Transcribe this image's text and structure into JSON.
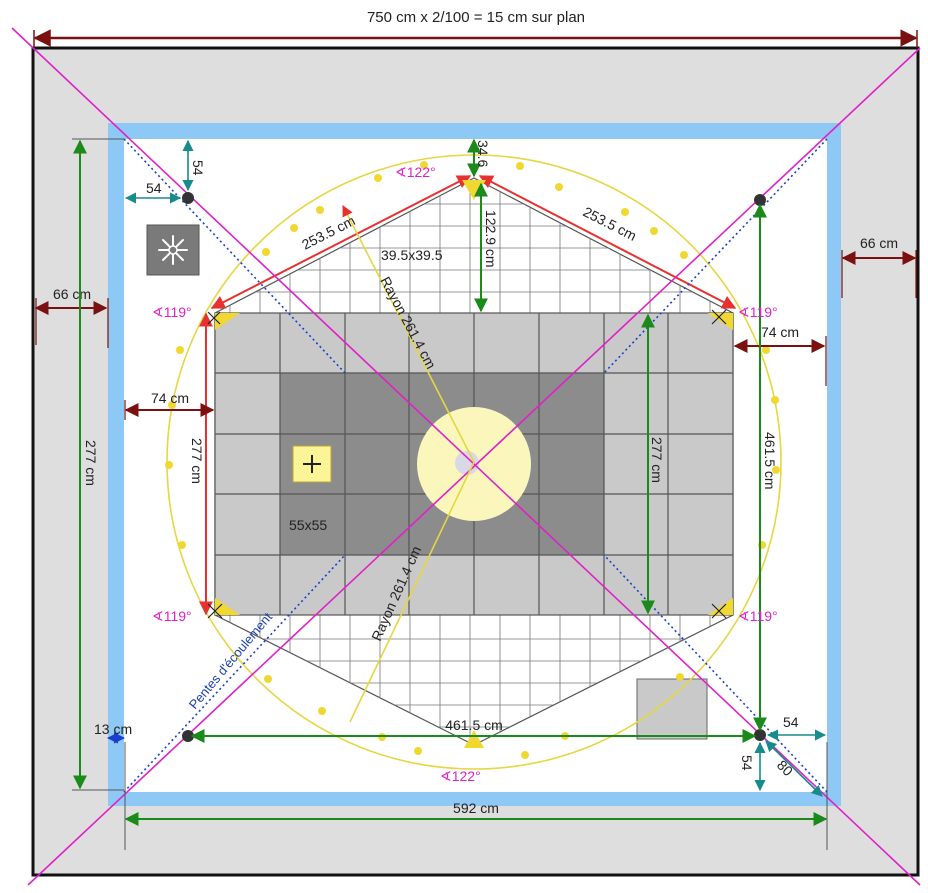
{
  "header": {
    "title": "750 cm x 2/100 = 15 cm sur plan"
  },
  "dims": {
    "top_54": "54",
    "left_54": "54",
    "right_66": "66 cm",
    "left_66": "66 cm",
    "right_74": "74 cm",
    "left_74": "74 cm",
    "h_277_outer": "277 cm",
    "h_277_inner_left": "277 cm",
    "h_277_inner_right": "277 cm",
    "v_461_5": "461.5  cm",
    "h_461_5": "461.5  cm",
    "w_592": "592  cm",
    "d_34_6": "34.6",
    "d_122_9": "122.9 cm",
    "d_253_left": "253.5 cm",
    "d_253_right": "253.5 cm",
    "rayon_top": "Rayon  261.4 cm",
    "rayon_bottom": "Rayon  261.4 cm",
    "tile_small": "39.5x39.5",
    "tile_big": "55x55",
    "d_13": "13 cm",
    "br_54_h": "54",
    "br_54_v": "54",
    "br_80": "80"
  },
  "angles": {
    "top": "∢122°",
    "bottom": "∢122°",
    "tl": "∢119°",
    "tr": "∢119°",
    "bl": "∢119°",
    "br": "∢119°"
  },
  "labels": {
    "slope": "Pentes d'écoulement"
  },
  "icons": {
    "vent": "vent-icon",
    "plus": "plus-icon"
  },
  "colors": {
    "outer_wall": "#dedede",
    "inner_border": "#8ec8f4",
    "dim_dark": "#7a1010",
    "dim_green": "#1b8a1b",
    "dim_red": "#e83030",
    "diagonal": "#e020c8",
    "circle": "#e6d640",
    "tile_light": "#c9c9c9",
    "tile_dark": "#8c8c8c",
    "drain": "#fbf7bc"
  }
}
